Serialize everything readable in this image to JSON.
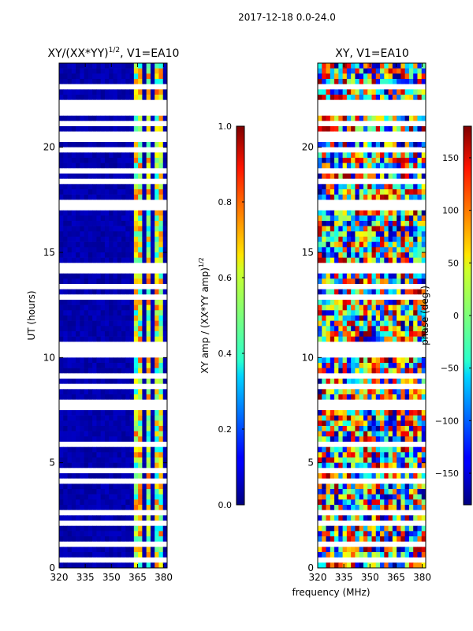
{
  "suptitle": "2017-12-18 0.0-24.0",
  "xlabel": "frequency (MHz)",
  "chart_data": [
    {
      "type": "heatmap",
      "title_main": "XY/(XX*YY)",
      "title_sup": "1/2",
      "title_tail": ", V1=EA10",
      "ylabel": "UT (hours)",
      "xlim": [
        320,
        382
      ],
      "ylim": [
        0,
        24
      ],
      "xticks": [
        320,
        335,
        350,
        365,
        380
      ],
      "yticks": [
        0,
        5,
        10,
        15,
        20
      ],
      "colorbar": {
        "label_main": "XY amp / (XX*YY amp)",
        "label_sup": "1/2",
        "range": [
          0.0,
          1.0
        ],
        "ticks": [
          0.0,
          0.2,
          0.4,
          0.6,
          0.8,
          1.0
        ],
        "tick_labels": [
          "0.0",
          "0.2",
          "0.4",
          "0.6",
          "0.8",
          "1.0"
        ],
        "colormap": "jet"
      },
      "blank_bands_ut": [
        [
          17.1,
          17.6
        ],
        [
          16.4,
          16.6
        ],
        [
          13.2,
          13.6
        ],
        [
          4.1,
          4.3
        ],
        [
          2.9,
          3.1
        ],
        [
          0.5,
          0.6
        ]
      ],
      "bright_channels_mhz": [
        [
          363,
          367
        ],
        [
          369,
          372
        ],
        [
          376,
          380
        ]
      ]
    },
    {
      "type": "heatmap",
      "title_main": "XY, V1=EA10",
      "xlim": [
        320,
        382
      ],
      "ylim": [
        0,
        24
      ],
      "xticks": [
        320,
        335,
        350,
        365,
        380
      ],
      "yticks": [
        0,
        5,
        10,
        15,
        20
      ],
      "colorbar": {
        "label_main": "phase (deg.)",
        "range": [
          -180,
          180
        ],
        "ticks": [
          -150,
          -100,
          -50,
          0,
          50,
          100,
          150
        ],
        "tick_labels": [
          "−150",
          "−100",
          "−50",
          "0",
          "50",
          "100",
          "150"
        ],
        "colormap": "jet"
      },
      "blank_bands_ut": [
        [
          17.1,
          17.6
        ],
        [
          16.4,
          16.6
        ],
        [
          13.2,
          13.6
        ],
        [
          4.1,
          4.3
        ],
        [
          2.9,
          3.1
        ],
        [
          0.5,
          0.6
        ]
      ]
    }
  ]
}
